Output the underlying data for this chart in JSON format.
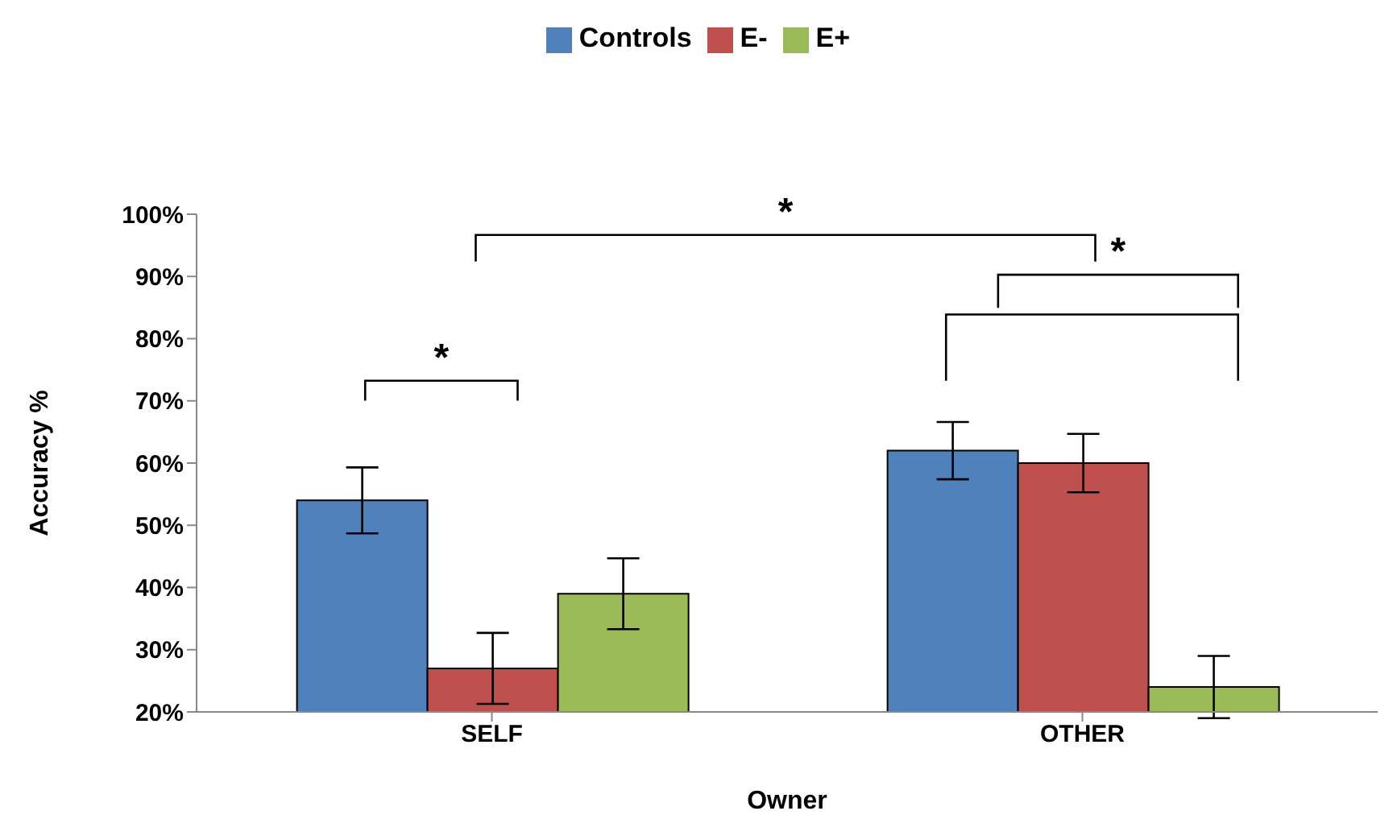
{
  "chart_data": {
    "type": "bar",
    "xlabel": "Owner",
    "ylabel": "Accuracy  %",
    "categories": [
      "SELF",
      "OTHER"
    ],
    "series": [
      {
        "name": "Controls",
        "color": "#4f81bd",
        "values": [
          54,
          62
        ],
        "errors": [
          5.3,
          4.6
        ]
      },
      {
        "name": "E-",
        "color": "#c0504d",
        "values": [
          27,
          60
        ],
        "errors": [
          5.7,
          4.7
        ]
      },
      {
        "name": "E+",
        "color": "#9bbb59",
        "values": [
          39,
          24
        ],
        "errors": [
          5.7,
          5
        ]
      }
    ],
    "ylim": [
      20,
      100
    ],
    "yticks": [
      {
        "value": 20,
        "label": "20%"
      },
      {
        "value": 30,
        "label": "30%"
      },
      {
        "value": 40,
        "label": "40%"
      },
      {
        "value": 50,
        "label": "50%"
      },
      {
        "value": 60,
        "label": "60%"
      },
      {
        "value": 70,
        "label": "70%"
      },
      {
        "value": 80,
        "label": "80%"
      },
      {
        "value": 90,
        "label": "90%"
      },
      {
        "value": 100,
        "label": "100%"
      }
    ],
    "grid": false,
    "legend": "top",
    "annotations": [
      "*",
      "*",
      "*"
    ]
  }
}
